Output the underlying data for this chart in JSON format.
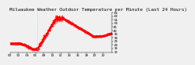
{
  "title": "Milwaukee Weather Outdoor Temperature per Minute (Last 24 Hours)",
  "title_fontsize": 4.2,
  "background_color": "#f0f0f0",
  "plot_bg_color": "#f0f0f0",
  "line_color": "#ff0000",
  "line_width": 0.6,
  "marker": ".",
  "marker_size": 0.5,
  "ylim": [
    10,
    65
  ],
  "yticks": [
    10,
    15,
    20,
    25,
    30,
    35,
    40,
    45,
    50,
    55,
    60,
    65
  ],
  "ylabel_fontsize": 3.0,
  "xlabel_fontsize": 2.8,
  "n_points": 1440,
  "vline_x": 390,
  "vline_color": "#bbbbbb",
  "vline_style": "dotted"
}
